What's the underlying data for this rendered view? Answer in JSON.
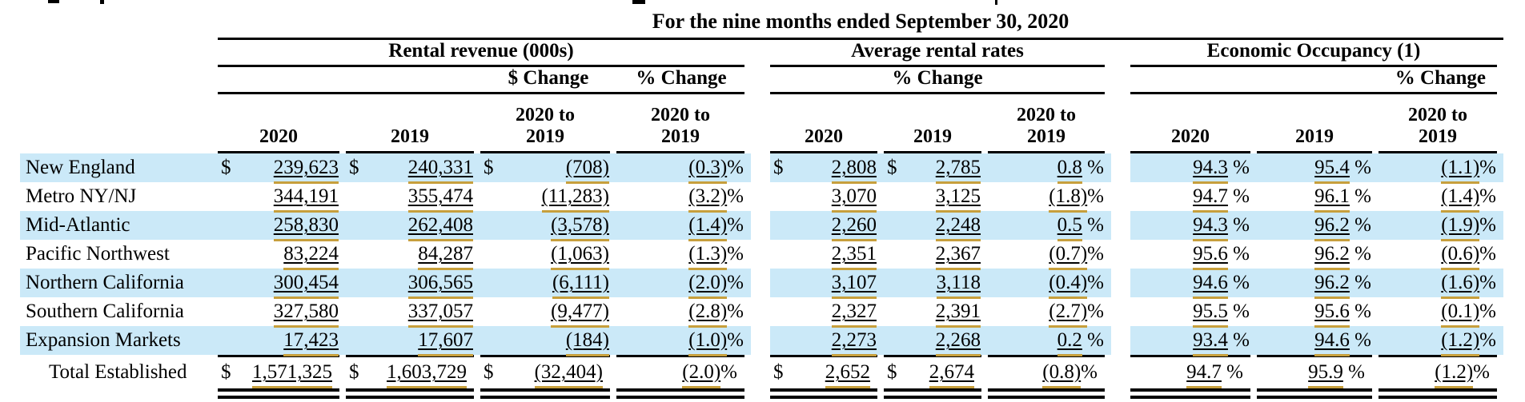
{
  "header": {
    "title": "For the nine months ended September 30, 2020",
    "group1": "Rental revenue (000s)",
    "group2": "Average rental rates",
    "group3": "Economic Occupancy (1)",
    "dollar_change": "$ Change",
    "percent_change": "% Change",
    "year_2020": "2020",
    "year_2019": "2019",
    "period_line1": "2020 to",
    "period_line2": "2019",
    "dollar_sign": "$"
  },
  "colors": {
    "row_highlight": "#CBE9F8",
    "tag_underline_gold": "#C79F3C",
    "rule_black": "#000000"
  },
  "rows": [
    {
      "label": "New England",
      "dollar": true,
      "values": [
        {
          "u": "239,623",
          "s": ""
        },
        {
          "u": "240,331",
          "s": ""
        },
        {
          "u": "(708)",
          "s": ""
        },
        {
          "u": "(0.3)",
          "s": "%"
        },
        {
          "u": "2,808",
          "s": ""
        },
        {
          "u": "2,785",
          "s": ""
        },
        {
          "u": "0.8",
          "s": " %"
        },
        {
          "u": "94.3",
          "s": " %"
        },
        {
          "u": "95.4",
          "s": " %"
        },
        {
          "u": "(1.1)",
          "s": "%"
        }
      ]
    },
    {
      "label": "Metro NY/NJ",
      "dollar": false,
      "values": [
        {
          "u": "344,191",
          "s": ""
        },
        {
          "u": "355,474",
          "s": ""
        },
        {
          "u": "(11,283)",
          "s": ""
        },
        {
          "u": "(3.2)",
          "s": "%"
        },
        {
          "u": "3,070",
          "s": ""
        },
        {
          "u": "3,125",
          "s": ""
        },
        {
          "u": "(1.8)",
          "s": "%"
        },
        {
          "u": "94.7",
          "s": " %"
        },
        {
          "u": "96.1",
          "s": " %"
        },
        {
          "u": "(1.4)",
          "s": "%"
        }
      ]
    },
    {
      "label": "Mid-Atlantic",
      "dollar": false,
      "values": [
        {
          "u": "258,830",
          "s": ""
        },
        {
          "u": "262,408",
          "s": ""
        },
        {
          "u": "(3,578)",
          "s": ""
        },
        {
          "u": "(1.4)",
          "s": "%"
        },
        {
          "u": "2,260",
          "s": ""
        },
        {
          "u": "2,248",
          "s": ""
        },
        {
          "u": "0.5",
          "s": " %"
        },
        {
          "u": "94.3",
          "s": " %"
        },
        {
          "u": "96.2",
          "s": " %"
        },
        {
          "u": "(1.9)",
          "s": "%"
        }
      ]
    },
    {
      "label": "Pacific Northwest",
      "dollar": false,
      "values": [
        {
          "u": "83,224",
          "s": ""
        },
        {
          "u": "84,287",
          "s": ""
        },
        {
          "u": "(1,063)",
          "s": ""
        },
        {
          "u": "(1.3)",
          "s": "%"
        },
        {
          "u": "2,351",
          "s": ""
        },
        {
          "u": "2,367",
          "s": ""
        },
        {
          "u": "(0.7)",
          "s": "%"
        },
        {
          "u": "95.6",
          "s": " %"
        },
        {
          "u": "96.2",
          "s": " %"
        },
        {
          "u": "(0.6)",
          "s": "%"
        }
      ]
    },
    {
      "label": "Northern California",
      "dollar": false,
      "values": [
        {
          "u": "300,454",
          "s": ""
        },
        {
          "u": "306,565",
          "s": ""
        },
        {
          "u": "(6,111)",
          "s": ""
        },
        {
          "u": "(2.0)",
          "s": "%"
        },
        {
          "u": "3,107",
          "s": ""
        },
        {
          "u": "3,118",
          "s": ""
        },
        {
          "u": "(0.4)",
          "s": "%"
        },
        {
          "u": "94.6",
          "s": " %"
        },
        {
          "u": "96.2",
          "s": " %"
        },
        {
          "u": "(1.6)",
          "s": "%"
        }
      ]
    },
    {
      "label": "Southern California",
      "dollar": false,
      "values": [
        {
          "u": "327,580",
          "s": ""
        },
        {
          "u": "337,057",
          "s": ""
        },
        {
          "u": "(9,477)",
          "s": ""
        },
        {
          "u": "(2.8)",
          "s": "%"
        },
        {
          "u": "2,327",
          "s": ""
        },
        {
          "u": "2,391",
          "s": ""
        },
        {
          "u": "(2.7)",
          "s": "%"
        },
        {
          "u": "95.5",
          "s": " %"
        },
        {
          "u": "95.6",
          "s": " %"
        },
        {
          "u": "(0.1)",
          "s": "%"
        }
      ]
    },
    {
      "label": "Expansion Markets",
      "dollar": false,
      "values": [
        {
          "u": "17,423",
          "s": ""
        },
        {
          "u": "17,607",
          "s": ""
        },
        {
          "u": "(184)",
          "s": ""
        },
        {
          "u": "(1.0)",
          "s": "%"
        },
        {
          "u": "2,273",
          "s": ""
        },
        {
          "u": "2,268",
          "s": ""
        },
        {
          "u": "0.2",
          "s": " %"
        },
        {
          "u": "93.4",
          "s": " %"
        },
        {
          "u": "94.6",
          "s": " %"
        },
        {
          "u": "(1.2)",
          "s": "%"
        }
      ]
    }
  ],
  "total": {
    "label": "Total Established",
    "dollar": true,
    "values": [
      {
        "u": "1,571,325",
        "s": ""
      },
      {
        "u": "1,603,729",
        "s": ""
      },
      {
        "u": "(32,404)",
        "s": ""
      },
      {
        "u": "(2.0)",
        "s": "%"
      },
      {
        "u": "2,652",
        "s": ""
      },
      {
        "u": "2,674",
        "s": ""
      },
      {
        "u": "(0.8)",
        "s": "%"
      },
      {
        "u": "94.7",
        "s": " %"
      },
      {
        "u": "95.9",
        "s": " %"
      },
      {
        "u": "(1.2)",
        "s": "%"
      }
    ]
  }
}
